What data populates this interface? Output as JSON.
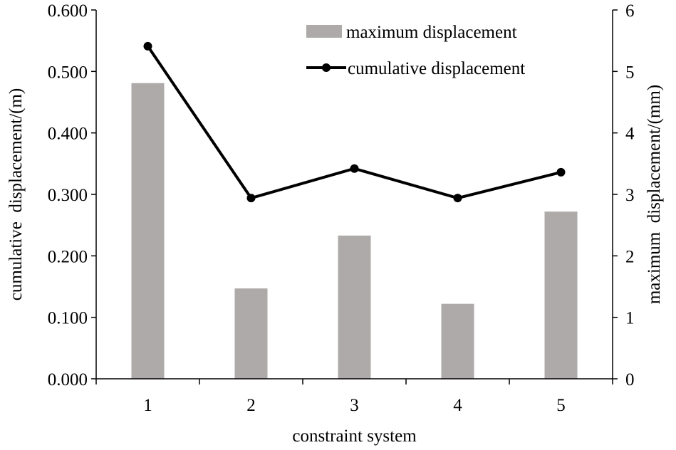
{
  "chart_data": {
    "type": "bar+line",
    "categories": [
      "1",
      "2",
      "3",
      "4",
      "5"
    ],
    "xlabel": "constraint system",
    "series": [
      {
        "name": "maximum displacement",
        "type": "bar",
        "axis": "right",
        "values": [
          4.81,
          1.47,
          2.33,
          1.22,
          2.72
        ],
        "color": "#aeaaaa"
      },
      {
        "name": "cumulative displacement",
        "type": "line",
        "axis": "left",
        "values": [
          0.541,
          0.294,
          0.342,
          0.294,
          0.336
        ],
        "color": "#000000"
      }
    ],
    "left_axis": {
      "label": "cumulative  displacement/(m)",
      "ylim": [
        0,
        0.6
      ],
      "ticks": [
        "0.000",
        "0.100",
        "0.200",
        "0.300",
        "0.400",
        "0.500",
        "0.600"
      ]
    },
    "right_axis": {
      "label": "maximum  displacement/(mm)",
      "ylim": [
        0,
        6
      ],
      "ticks": [
        "0",
        "1",
        "2",
        "3",
        "4",
        "5",
        "6"
      ]
    },
    "legend": {
      "position": "top-right",
      "entries": [
        "maximum displacement",
        "cumulative displacement"
      ]
    },
    "grid": false
  }
}
